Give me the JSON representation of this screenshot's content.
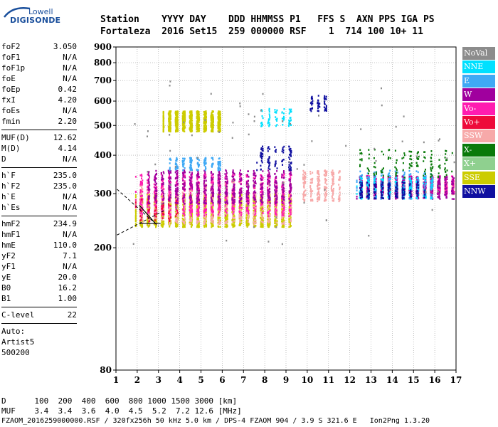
{
  "logo": {
    "line1": "Lowell",
    "line2": "DIGISONDE"
  },
  "header": {
    "labels": "Station    YYYY DAY    DDD HHMMSS P1   FFS S  AXN PPS IGA PS",
    "values": "Fortaleza  2016 Set15  259 000000 RSF    1  714 100 10+ 11"
  },
  "params": {
    "group1": [
      {
        "label": "foF2",
        "value": "3.050"
      },
      {
        "label": "foF1",
        "value": "N/A"
      },
      {
        "label": "foF1p",
        "value": "N/A"
      },
      {
        "label": "foE",
        "value": "N/A"
      },
      {
        "label": "foEp",
        "value": "0.42"
      },
      {
        "label": "fxI",
        "value": "4.20"
      },
      {
        "label": "foEs",
        "value": "N/A"
      },
      {
        "label": "fmin",
        "value": "2.20"
      }
    ],
    "group2": [
      {
        "label": "MUF(D)",
        "value": "12.62"
      },
      {
        "label": "M(D)",
        "value": "4.14"
      },
      {
        "label": "D",
        "value": "N/A"
      }
    ],
    "group3": [
      {
        "label": "h`F",
        "value": "235.0"
      },
      {
        "label": "h`F2",
        "value": "235.0"
      },
      {
        "label": "h`E",
        "value": "N/A"
      },
      {
        "label": "h`Es",
        "value": "N/A"
      }
    ],
    "group4": [
      {
        "label": "hmF2",
        "value": "234.9"
      },
      {
        "label": "hmF1",
        "value": "N/A"
      },
      {
        "label": "hmE",
        "value": "110.0"
      },
      {
        "label": "yF2",
        "value": "7.1"
      },
      {
        "label": "yF1",
        "value": "N/A"
      },
      {
        "label": "yE",
        "value": "20.0"
      },
      {
        "label": "B0",
        "value": "16.2"
      },
      {
        "label": "B1",
        "value": "1.00"
      }
    ],
    "group5": [
      {
        "label": "C-level",
        "value": "22"
      }
    ],
    "auto": [
      "Auto:",
      "Artist5",
      "500200"
    ]
  },
  "legend": [
    {
      "label": "NoVal",
      "color": "#8c8c8c"
    },
    {
      "label": "NNE",
      "color": "#00e0ff"
    },
    {
      "label": "E",
      "color": "#3fa9f5"
    },
    {
      "label": "W",
      "color": "#a0009e"
    },
    {
      "label": "Vo-",
      "color": "#ff1cb0"
    },
    {
      "label": "Vo+",
      "color": "#ee0a3a"
    },
    {
      "label": "SSW",
      "color": "#f7a9a9"
    },
    {
      "label": "X-",
      "color": "#0a7a0a"
    },
    {
      "label": "X+",
      "color": "#8fd08f"
    },
    {
      "label": "SSE",
      "color": "#cccc00"
    },
    {
      "label": "NNW",
      "color": "#1010a0"
    }
  ],
  "footer": {
    "line1": "D      100  200  400  600  800 1000 1500 3000 [km]",
    "line2": "MUF    3.4  3.4  3.6  4.0  4.5  5.2  7.2 12.6 [MHz]",
    "line3": "FZAOM_2016259000000.RSF / 320fx256h 50 kHz 5.0 km / DPS-4 FZAOM 904 / 3.9 S 321.6 E   Ion2Png 1.3.20"
  },
  "chart_data": {
    "type": "scatter",
    "title": "",
    "xlabel": "",
    "ylabel": "",
    "xlim": [
      1,
      17
    ],
    "ylim": [
      80,
      900
    ],
    "y_scale": "log",
    "x_ticks": [
      "1",
      "2",
      "3",
      "4",
      "5",
      "6",
      "7",
      "8",
      "9",
      "10",
      "11",
      "12",
      "13",
      "14",
      "15",
      "16",
      "17"
    ],
    "y_ticks": [
      "80",
      "200",
      "300",
      "400",
      "500",
      "600",
      "700",
      "800",
      "900"
    ],
    "grid": "dotted",
    "series": [
      {
        "name": "SSE",
        "color": "#cccc00",
        "clusters": [
          {
            "x": [
              1.9,
              9.3
            ],
            "y": [
              235,
              300
            ]
          },
          {
            "x": [
              3.2,
              6.0
            ],
            "y": [
              480,
              560
            ]
          }
        ]
      },
      {
        "name": "SSW",
        "color": "#f7a9a9",
        "clusters": [
          {
            "x": [
              2.0,
              9.3
            ],
            "y": [
              240,
              330
            ]
          },
          {
            "x": [
              9.7,
              11.5
            ],
            "y": [
              285,
              360
            ]
          },
          {
            "x": [
              12.5,
              16.9
            ],
            "y": [
              300,
              330
            ]
          }
        ]
      },
      {
        "name": "Vo-",
        "color": "#ff1cb0",
        "clusters": [
          {
            "x": [
              1.9,
              9.3
            ],
            "y": [
              255,
              350
            ]
          },
          {
            "x": [
              12.5,
              16.9
            ],
            "y": [
              300,
              345
            ]
          }
        ]
      },
      {
        "name": "Vo+",
        "color": "#ee0a3a",
        "clusters": [
          {
            "x": [
              1.9,
              4.0
            ],
            "y": [
              245,
              290
            ]
          }
        ]
      },
      {
        "name": "W",
        "color": "#a0009e",
        "clusters": [
          {
            "x": [
              2.5,
              9.3
            ],
            "y": [
              280,
              360
            ]
          },
          {
            "x": [
              12.3,
              16.9
            ],
            "y": [
              290,
              345
            ]
          }
        ]
      },
      {
        "name": "E",
        "color": "#3fa9f5",
        "clusters": [
          {
            "x": [
              3.5,
              6.0
            ],
            "y": [
              360,
              395
            ]
          },
          {
            "x": [
              12.3,
              16.0
            ],
            "y": [
              290,
              360
            ]
          }
        ]
      },
      {
        "name": "NNE",
        "color": "#00e0ff",
        "clusters": [
          {
            "x": [
              7.8,
              9.3
            ],
            "y": [
              500,
              570
            ]
          },
          {
            "x": [
              12.3,
              16.0
            ],
            "y": [
              290,
              340
            ]
          }
        ]
      },
      {
        "name": "NNW",
        "color": "#1010a0",
        "clusters": [
          {
            "x": [
              7.6,
              9.3
            ],
            "y": [
              360,
              430
            ]
          },
          {
            "x": [
              10.0,
              11.0
            ],
            "y": [
              560,
              630
            ]
          },
          {
            "x": [
              12.3,
              15.5
            ],
            "y": [
              290,
              330
            ]
          }
        ]
      },
      {
        "name": "X-",
        "color": "#0a7a0a",
        "clusters": [
          {
            "x": [
              12.4,
              16.9
            ],
            "y": [
              340,
              420
            ]
          }
        ]
      },
      {
        "name": "NoVal",
        "color": "#8c8c8c",
        "clusters": [
          {
            "x": [
              1.5,
              16.9
            ],
            "y": [
              200,
              700
            ]
          }
        ]
      }
    ]
  }
}
